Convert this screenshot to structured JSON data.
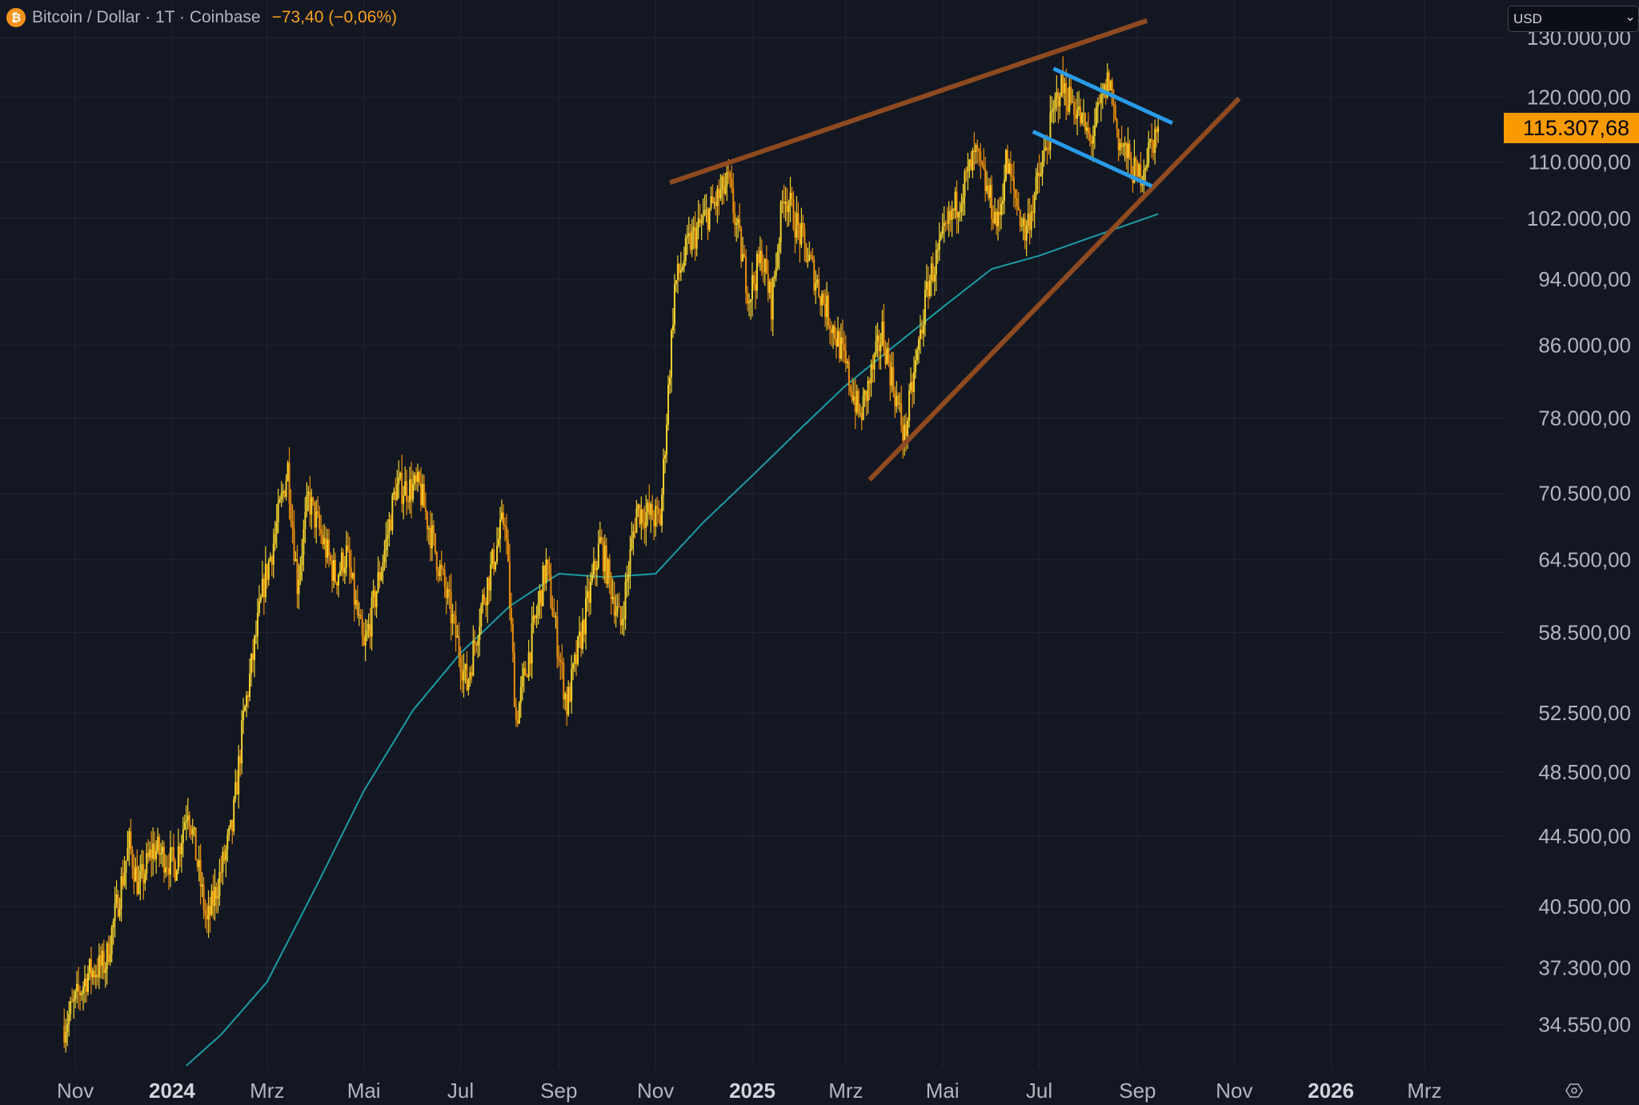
{
  "header": {
    "symbol_icon": "bitcoin-icon",
    "title": "Bitcoin / Dollar · 1T · Coinbase",
    "change": "−73,40 (−0,06%)"
  },
  "currency_select": {
    "value": "USD",
    "icon": "chevron-down-icon"
  },
  "settings_icon": "gear-icon",
  "colors": {
    "background": "#131722",
    "grid": "#1f2330",
    "candle_up": "#f2d22e",
    "candle_down": "#e98f0c",
    "moving_average": "#1a9ba3",
    "trendline_brown": "#8e4a20",
    "channel_blue": "#2a9be8",
    "last_price_tag": "#f89a00"
  },
  "chart_data": {
    "type": "candlestick",
    "scale": "log",
    "interval": "1 day",
    "grid": true,
    "ylim": [
      32500,
      132500
    ],
    "xlim": [
      "2023-10-12",
      "2026-04-10"
    ],
    "y_ticks": [
      {
        "value": 130000,
        "label": "130.000,00"
      },
      {
        "value": 120000,
        "label": "120.000,00"
      },
      {
        "value": 110000,
        "label": "110.000,00"
      },
      {
        "value": 102000,
        "label": "102.000,00"
      },
      {
        "value": 94000,
        "label": "94.000,00"
      },
      {
        "value": 86000,
        "label": "86.000,00"
      },
      {
        "value": 78000,
        "label": "78.000,00"
      },
      {
        "value": 70500,
        "label": "70.500,00"
      },
      {
        "value": 64500,
        "label": "64.500,00"
      },
      {
        "value": 58500,
        "label": "58.500,00"
      },
      {
        "value": 52500,
        "label": "52.500,00"
      },
      {
        "value": 48500,
        "label": "48.500,00"
      },
      {
        "value": 44500,
        "label": "44.500,00"
      },
      {
        "value": 40500,
        "label": "40.500,00"
      },
      {
        "value": 37300,
        "label": "37.300,00"
      },
      {
        "value": 34550,
        "label": "34.550,00"
      }
    ],
    "x_ticks": [
      {
        "date": "2023-11-01",
        "label": "Nov",
        "bold": false
      },
      {
        "date": "2024-01-01",
        "label": "2024",
        "bold": true
      },
      {
        "date": "2024-03-01",
        "label": "Mrz",
        "bold": false
      },
      {
        "date": "2024-05-01",
        "label": "Mai",
        "bold": false
      },
      {
        "date": "2024-07-01",
        "label": "Jul",
        "bold": false
      },
      {
        "date": "2024-09-01",
        "label": "Sep",
        "bold": false
      },
      {
        "date": "2024-11-01",
        "label": "Nov",
        "bold": false
      },
      {
        "date": "2025-01-01",
        "label": "2025",
        "bold": true
      },
      {
        "date": "2025-03-01",
        "label": "Mrz",
        "bold": false
      },
      {
        "date": "2025-05-01",
        "label": "Mai",
        "bold": false
      },
      {
        "date": "2025-07-01",
        "label": "Jul",
        "bold": false
      },
      {
        "date": "2025-09-01",
        "label": "Sep",
        "bold": false
      },
      {
        "date": "2025-11-01",
        "label": "Nov",
        "bold": false
      },
      {
        "date": "2026-01-01",
        "label": "2026",
        "bold": true
      },
      {
        "date": "2026-03-01",
        "label": "Mrz",
        "bold": false
      }
    ],
    "last_price": {
      "value": 115307.68,
      "label": "115.307,68"
    },
    "price_path": [
      [
        "2023-10-25",
        34500
      ],
      [
        "2023-11-09",
        37000
      ],
      [
        "2023-11-20",
        37500
      ],
      [
        "2023-12-05",
        44000
      ],
      [
        "2023-12-11",
        41500
      ],
      [
        "2023-12-20",
        43800
      ],
      [
        "2024-01-03",
        42800
      ],
      [
        "2024-01-11",
        46500
      ],
      [
        "2024-01-23",
        39500
      ],
      [
        "2024-02-08",
        45000
      ],
      [
        "2024-02-15",
        52000
      ],
      [
        "2024-02-28",
        62500
      ],
      [
        "2024-03-05",
        66000
      ],
      [
        "2024-03-14",
        73000
      ],
      [
        "2024-03-20",
        62500
      ],
      [
        "2024-03-27",
        70000
      ],
      [
        "2024-04-13",
        63000
      ],
      [
        "2024-04-20",
        65000
      ],
      [
        "2024-05-01",
        57000
      ],
      [
        "2024-05-15",
        66000
      ],
      [
        "2024-05-21",
        71000
      ],
      [
        "2024-06-05",
        71000
      ],
      [
        "2024-06-24",
        60500
      ],
      [
        "2024-07-05",
        54500
      ],
      [
        "2024-07-14",
        60500
      ],
      [
        "2024-07-29",
        68500
      ],
      [
        "2024-08-05",
        52000
      ],
      [
        "2024-08-24",
        64000
      ],
      [
        "2024-09-06",
        53000
      ],
      [
        "2024-09-27",
        66000
      ],
      [
        "2024-10-10",
        59000
      ],
      [
        "2024-10-20",
        69000
      ],
      [
        "2024-11-04",
        68000
      ],
      [
        "2024-11-13",
        93000
      ],
      [
        "2024-11-22",
        98500
      ],
      [
        "2024-12-05",
        103000
      ],
      [
        "2024-12-17",
        107000
      ],
      [
        "2024-12-30",
        92000
      ],
      [
        "2025-01-07",
        97000
      ],
      [
        "2025-01-13",
        91000
      ],
      [
        "2025-01-21",
        106000
      ],
      [
        "2025-02-03",
        98000
      ],
      [
        "2025-02-25",
        86000
      ],
      [
        "2025-03-10",
        78000
      ],
      [
        "2025-03-24",
        87500
      ],
      [
        "2025-04-07",
        76000
      ],
      [
        "2025-04-22",
        93500
      ],
      [
        "2025-05-08",
        103000
      ],
      [
        "2025-05-22",
        111000
      ],
      [
        "2025-06-05",
        101000
      ],
      [
        "2025-06-10",
        110000
      ],
      [
        "2025-06-22",
        100000
      ],
      [
        "2025-07-03",
        109500
      ],
      [
        "2025-07-14",
        122000
      ],
      [
        "2025-07-24",
        118500
      ],
      [
        "2025-08-02",
        113000
      ],
      [
        "2025-08-14",
        123000
      ],
      [
        "2025-08-20",
        113500
      ],
      [
        "2025-09-01",
        107500
      ],
      [
        "2025-09-14",
        115300
      ]
    ],
    "moving_average": [
      [
        "2024-01-10",
        32700
      ],
      [
        "2024-02-01",
        34100
      ],
      [
        "2024-03-01",
        36600
      ],
      [
        "2024-04-01",
        41600
      ],
      [
        "2024-05-01",
        47300
      ],
      [
        "2024-06-01",
        52700
      ],
      [
        "2024-07-01",
        56900
      ],
      [
        "2024-08-01",
        60600
      ],
      [
        "2024-09-01",
        63300
      ],
      [
        "2024-10-01",
        63000
      ],
      [
        "2024-11-01",
        63300
      ],
      [
        "2024-12-01",
        67800
      ],
      [
        "2025-01-01",
        72200
      ],
      [
        "2025-02-01",
        77000
      ],
      [
        "2025-03-01",
        81500
      ],
      [
        "2025-04-01",
        86000
      ],
      [
        "2025-05-01",
        90500
      ],
      [
        "2025-06-01",
        95300
      ],
      [
        "2025-07-01",
        97000
      ],
      [
        "2025-08-01",
        99300
      ],
      [
        "2025-09-14",
        102600
      ]
    ],
    "drawings": [
      {
        "kind": "trendline",
        "color": "brown",
        "from": [
          "2024-11-10",
          107000
        ],
        "to": [
          "2025-09-07",
          133000
        ]
      },
      {
        "kind": "trendline",
        "color": "brown",
        "from": [
          "2025-03-16",
          71800
        ],
        "to": [
          "2025-11-04",
          119800
        ]
      },
      {
        "kind": "channel-line",
        "color": "blue",
        "from": [
          "2025-07-10",
          124700
        ],
        "to": [
          "2025-09-23",
          115900
        ]
      },
      {
        "kind": "channel-line",
        "color": "blue",
        "from": [
          "2025-06-27",
          114600
        ],
        "to": [
          "2025-09-10",
          106500
        ]
      }
    ]
  }
}
